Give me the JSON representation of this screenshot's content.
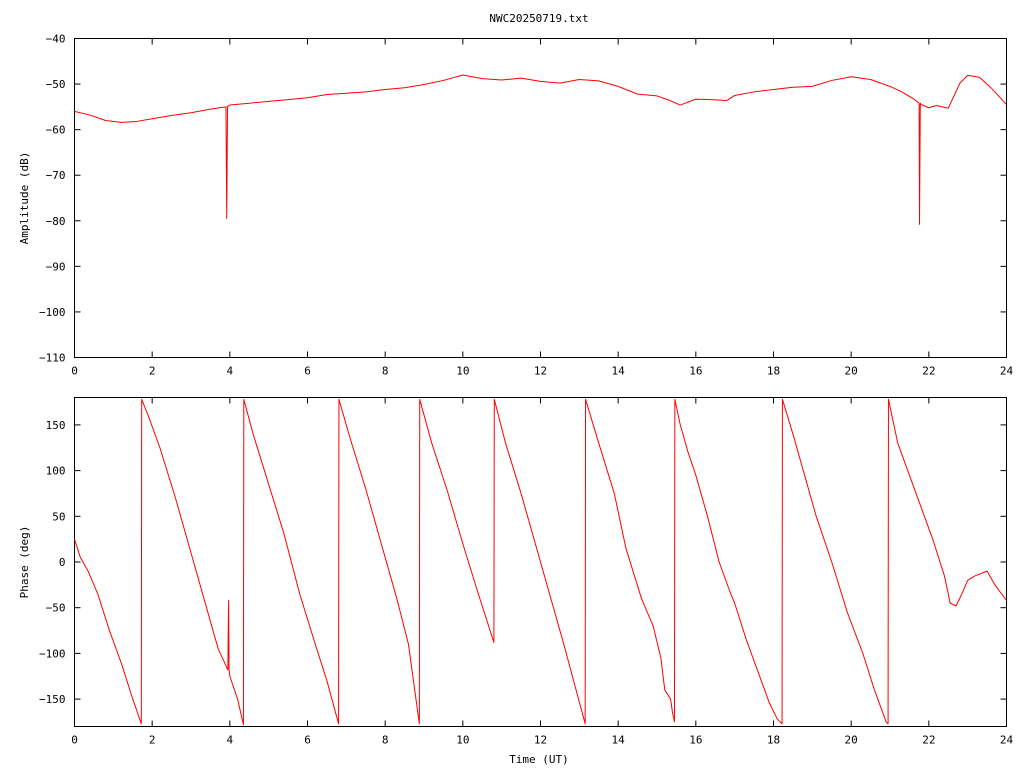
{
  "chart_data": [
    {
      "type": "line",
      "title": "NWC20250719.txt",
      "xlabel": "",
      "ylabel": "Amplitude (dB)",
      "xlim": [
        0,
        24
      ],
      "ylim": [
        -110,
        -40
      ],
      "x_ticks": [
        0,
        2,
        4,
        6,
        8,
        10,
        12,
        14,
        16,
        18,
        20,
        22,
        24
      ],
      "x_tick_labels": [
        "0",
        "2",
        "4",
        "6",
        "8",
        "10",
        "12",
        "14",
        "16",
        "18",
        "20",
        "22",
        "24"
      ],
      "y_ticks": [
        -110,
        -100,
        -90,
        -80,
        -70,
        -60,
        -50,
        -40
      ],
      "y_tick_labels": [
        "−110",
        "−100",
        "−90",
        "−80",
        "−70",
        "−60",
        "−50",
        "−40"
      ],
      "grid": false,
      "color": "#ff0000",
      "series": [
        {
          "x": [
            0,
            0.4,
            0.8,
            1.2,
            1.6,
            2.0,
            2.5,
            3.0,
            3.5,
            3.9,
            3.92,
            3.94,
            3.96,
            4.0,
            4.5,
            5.0,
            5.5,
            6.0,
            6.5,
            7.0,
            7.5,
            8.0,
            8.5,
            9.0,
            9.5,
            10.0,
            10.5,
            11.0,
            11.5,
            12.0,
            12.5,
            13.0,
            13.5,
            14.0,
            14.5,
            15.0,
            15.3,
            15.6,
            16.0,
            16.4,
            16.8,
            17.0,
            17.5,
            18.0,
            18.5,
            19.0,
            19.5,
            20.0,
            20.5,
            21.0,
            21.3,
            21.6,
            21.75,
            21.76,
            21.78,
            21.8,
            22.0,
            22.2,
            22.5,
            22.8,
            23.0,
            23.3,
            23.6,
            24.0
          ],
          "y": [
            -56,
            -56.8,
            -58,
            -58.4,
            -58.2,
            -57.6,
            -56.9,
            -56.3,
            -55.5,
            -55.0,
            -79.5,
            -55.0,
            -54.8,
            -54.6,
            -54.2,
            -53.8,
            -53.4,
            -53.0,
            -52.3,
            -52.0,
            -51.7,
            -51.2,
            -50.8,
            -50.1,
            -49.2,
            -48.0,
            -48.8,
            -49.1,
            -48.7,
            -49.4,
            -49.8,
            -49.0,
            -49.3,
            -50.5,
            -52.2,
            -52.6,
            -53.5,
            -54.6,
            -53.3,
            -53.4,
            -53.6,
            -52.5,
            -51.7,
            -51.2,
            -50.7,
            -50.5,
            -49.2,
            -48.4,
            -49.0,
            -50.5,
            -51.7,
            -53.2,
            -54.2,
            -80.8,
            -54.2,
            -54.5,
            -55.2,
            -54.7,
            -55.3,
            -49.8,
            -48.1,
            -48.5,
            -50.8,
            -54.5
          ]
        }
      ]
    },
    {
      "type": "line",
      "title": "",
      "xlabel": "Time (UT)",
      "ylabel": "Phase (deg)",
      "xlim": [
        0,
        24
      ],
      "ylim": [
        -180,
        180
      ],
      "x_ticks": [
        0,
        2,
        4,
        6,
        8,
        10,
        12,
        14,
        16,
        18,
        20,
        22,
        24
      ],
      "x_tick_labels": [
        "0",
        "2",
        "4",
        "6",
        "8",
        "10",
        "12",
        "14",
        "16",
        "18",
        "20",
        "22",
        "24"
      ],
      "y_ticks": [
        -150,
        -100,
        -50,
        0,
        50,
        100,
        150
      ],
      "y_tick_labels": [
        "−150",
        "−100",
        "−50",
        "0",
        "50",
        "100",
        "150"
      ],
      "grid": false,
      "color": "#ff0000",
      "series": [
        {
          "x": [
            0,
            0.15,
            0.35,
            0.6,
            0.9,
            1.2,
            1.5,
            1.72,
            1.73,
            1.9,
            2.2,
            2.6,
            3.0,
            3.4,
            3.7,
            3.95,
            3.96,
            3.97,
            3.98,
            4.0,
            4.2,
            4.35,
            4.36,
            4.6,
            5.0,
            5.4,
            5.8,
            6.2,
            6.5,
            6.8,
            6.81,
            7.1,
            7.5,
            7.9,
            8.3,
            8.6,
            8.88,
            8.89,
            9.2,
            9.6,
            10.0,
            10.4,
            10.8,
            10.81,
            11.1,
            11.5,
            11.9,
            12.3,
            12.6,
            13.15,
            13.16,
            13.5,
            13.9,
            14.2,
            14.6,
            14.9,
            15.1,
            15.2,
            15.35,
            15.4,
            15.45,
            15.46,
            15.6,
            15.8,
            16.0,
            16.3,
            16.6,
            16.9,
            17.0,
            17.3,
            17.6,
            17.9,
            18.1,
            18.22,
            18.23,
            18.5,
            18.8,
            19.1,
            19.5,
            19.9,
            20.3,
            20.6,
            20.9,
            20.95,
            20.96,
            21.2,
            21.5,
            21.8,
            22.1,
            22.4,
            22.55,
            22.7,
            22.85,
            23.0,
            23.2,
            23.5,
            23.7,
            24.0
          ],
          "y": [
            25,
            5,
            -10,
            -35,
            -75,
            -110,
            -150,
            -177,
            178,
            160,
            125,
            70,
            10,
            -50,
            -95,
            -118,
            -68,
            -42,
            -118,
            -125,
            -150,
            -178,
            178,
            140,
            85,
            30,
            -35,
            -90,
            -130,
            -177,
            178,
            135,
            80,
            20,
            -40,
            -90,
            -177,
            178,
            130,
            78,
            20,
            -35,
            -88,
            178,
            130,
            75,
            15,
            -45,
            -90,
            -177,
            178,
            130,
            75,
            15,
            -40,
            -70,
            -105,
            -140,
            -150,
            -165,
            -175,
            178,
            150,
            120,
            95,
            50,
            0,
            -35,
            -45,
            -85,
            -120,
            -155,
            -172,
            -177,
            178,
            140,
            95,
            50,
            0,
            -55,
            -100,
            -140,
            -175,
            -177,
            178,
            130,
            95,
            60,
            25,
            -15,
            -45,
            -48,
            -35,
            -20,
            -15,
            -10,
            -25,
            -42
          ]
        }
      ]
    }
  ]
}
